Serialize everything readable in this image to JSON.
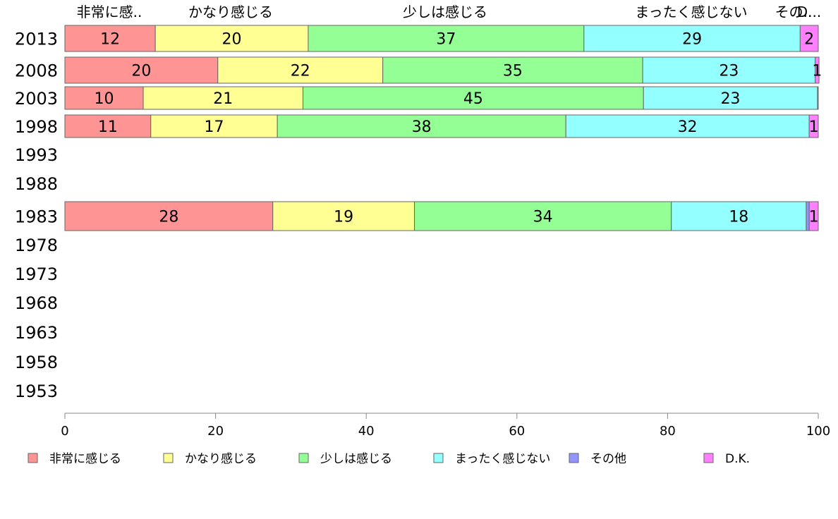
{
  "chart_data": {
    "type": "bar",
    "orientation": "horizontal",
    "stacked": true,
    "header_labels": [
      "非常に感..",
      "かなり感じる",
      "少しは感じる",
      "まったく感じない",
      "その..",
      "D..."
    ],
    "categories": [
      "2013",
      "2008",
      "2003",
      "1998",
      "1993",
      "1988",
      "1983",
      "1978",
      "1973",
      "1968",
      "1963",
      "1958",
      "1953"
    ],
    "series": [
      {
        "name": "非常に感じる",
        "color": "#ff9494",
        "values": [
          12,
          20.3,
          10.4,
          11.4,
          null,
          null,
          27.6,
          null,
          null,
          null,
          null,
          null,
          null
        ],
        "labels": [
          "12",
          "20",
          "10",
          "11",
          "",
          "",
          "28",
          "",
          "",
          "",
          "",
          "",
          ""
        ]
      },
      {
        "name": "かなり感じる",
        "color": "#ffff94",
        "values": [
          20.3,
          21.9,
          21.2,
          16.8,
          null,
          null,
          18.8,
          null,
          null,
          null,
          null,
          null,
          null
        ],
        "labels": [
          "20",
          "22",
          "21",
          "17",
          "",
          "",
          "19",
          "",
          "",
          "",
          "",
          "",
          ""
        ]
      },
      {
        "name": "少しは感じる",
        "color": "#94ff94",
        "values": [
          36.6,
          34.5,
          45.2,
          38.3,
          null,
          null,
          34.1,
          null,
          null,
          null,
          null,
          null,
          null
        ],
        "labels": [
          "37",
          "35",
          "45",
          "38",
          "",
          "",
          "34",
          "",
          "",
          "",
          "",
          "",
          ""
        ]
      },
      {
        "name": "まったく感じない",
        "color": "#94ffff",
        "values": [
          28.7,
          22.9,
          23.1,
          32.3,
          null,
          null,
          17.9,
          null,
          null,
          null,
          null,
          null,
          null
        ],
        "labels": [
          "29",
          "23",
          "23",
          "32",
          "",
          "",
          "18",
          "",
          "",
          "",
          "",
          "",
          ""
        ]
      },
      {
        "name": "その他",
        "color": "#9494ff",
        "values": [
          0,
          0,
          0,
          0,
          null,
          null,
          0.4,
          null,
          null,
          null,
          null,
          null,
          null
        ],
        "labels": [
          "",
          "",
          "",
          "",
          "",
          "",
          "",
          "",
          "",
          "",
          "",
          "",
          ""
        ]
      },
      {
        "name": "D.K.",
        "color": "#ff80ff",
        "values": [
          2.4,
          0.5,
          0.1,
          1.2,
          null,
          null,
          1.2,
          null,
          null,
          null,
          null,
          null,
          null
        ],
        "labels": [
          "2",
          "1",
          "",
          "1",
          "",
          "",
          "1",
          "",
          "",
          "",
          "",
          "",
          ""
        ]
      }
    ],
    "xlim": [
      0,
      100
    ],
    "xticks": [
      0,
      20,
      40,
      60,
      80,
      100
    ],
    "xlabel": "",
    "ylabel": "",
    "title": "",
    "grid": false,
    "legend_position": "bottom"
  }
}
